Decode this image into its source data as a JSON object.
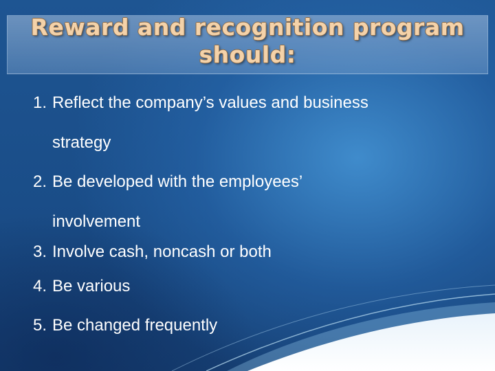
{
  "slide": {
    "title_line1": "Reward and recognition program",
    "title_line2": "should:",
    "items": [
      {
        "number": "1.",
        "text": "Reflect the company’s values and business",
        "continuation": "strategy"
      },
      {
        "number": "2.",
        "text": "Be developed with the employees’",
        "continuation": "involvement"
      },
      {
        "number": "3.",
        "text": "Involve cash, noncash or both"
      },
      {
        "number": "4.",
        "text": "Be various"
      },
      {
        "number": "5.",
        "text": "Be changed frequently"
      }
    ]
  }
}
